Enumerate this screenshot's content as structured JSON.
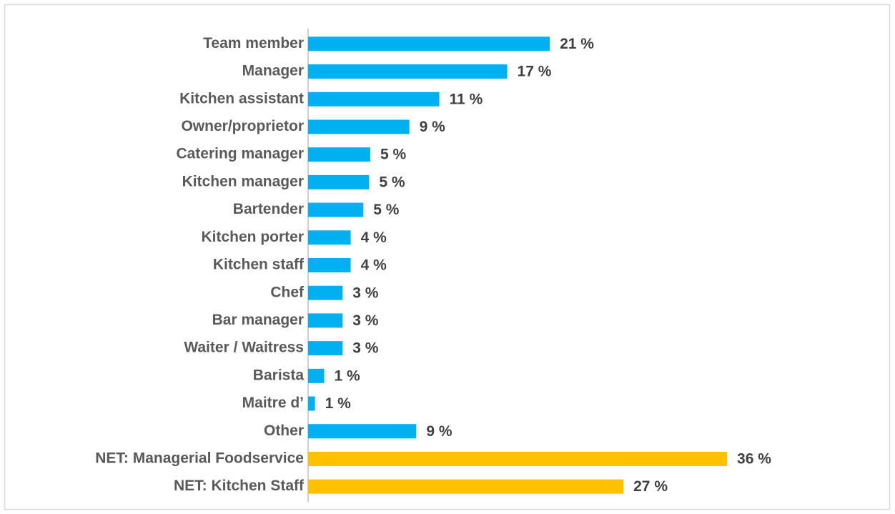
{
  "chart_data": {
    "type": "hbar",
    "categories": [
      "Team member",
      "Manager",
      "Kitchen assistant",
      "Owner/proprietor",
      "Catering manager",
      "Kitchen manager",
      "Bartender",
      "Kitchen porter",
      "Kitchen staff",
      "Chef",
      "Bar manager",
      "Waiter / Waitress",
      "Barista",
      "Maitre d’",
      "Other",
      "NET: Managerial Foodservice",
      "NET: Kitchen Staff"
    ],
    "values": [
      21.0,
      17.3,
      11.4,
      8.8,
      5.4,
      5.3,
      4.8,
      3.7,
      3.7,
      3.0,
      3.0,
      3.0,
      1.4,
      0.6,
      9.4,
      36.4,
      27.4
    ],
    "value_labels": [
      "21 %",
      "17 %",
      "11 %",
      "9 %",
      "5 %",
      "5 %",
      "5 %",
      "4 %",
      "4 %",
      "3 %",
      "3 %",
      "3 %",
      "1 %",
      "1 %",
      "9 %",
      "36 %",
      "27 %"
    ],
    "colors": [
      "#00b0f0",
      "#00b0f0",
      "#00b0f0",
      "#00b0f0",
      "#00b0f0",
      "#00b0f0",
      "#00b0f0",
      "#00b0f0",
      "#00b0f0",
      "#00b0f0",
      "#00b0f0",
      "#00b0f0",
      "#00b0f0",
      "#00b0f0",
      "#00b0f0",
      "#ffc000",
      "#ffc000"
    ],
    "xlim": [
      0,
      40
    ]
  }
}
